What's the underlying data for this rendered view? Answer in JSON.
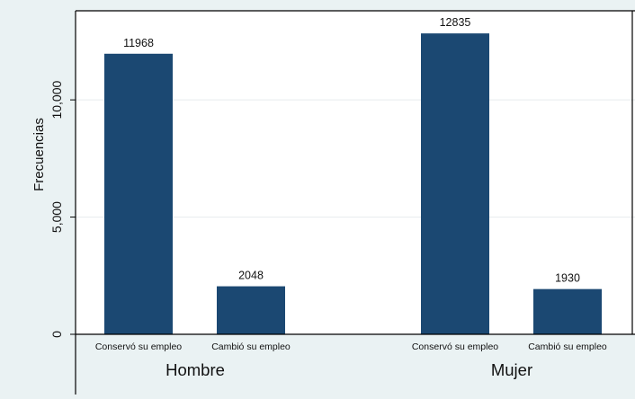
{
  "chart_data": {
    "type": "bar",
    "ylabel": "Frecuencias",
    "ylim": [
      0,
      13800
    ],
    "yticks": [
      0,
      5000,
      10000
    ],
    "ytick_labels": [
      "0",
      "5,000",
      "10,000"
    ],
    "grid": true,
    "groups": [
      {
        "name": "Hombre",
        "bars": [
          {
            "category": "Conservó su empleo",
            "value": 11968,
            "label": "11968"
          },
          {
            "category": "Cambió su empleo",
            "value": 2048,
            "label": "2048"
          }
        ]
      },
      {
        "name": "Mujer",
        "bars": [
          {
            "category": "Conservó su empleo",
            "value": 12835,
            "label": "12835"
          },
          {
            "category": "Cambió su empleo",
            "value": 1930,
            "label": "1930"
          }
        ]
      }
    ]
  },
  "colors": {
    "background": "#eaf2f3",
    "plot_background": "#ffffff",
    "bar": "#1b4872",
    "grid": "#e7ecee",
    "axis": "#000000"
  }
}
